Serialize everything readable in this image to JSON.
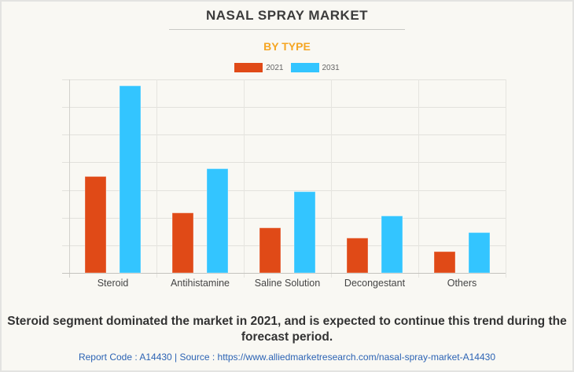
{
  "header": {
    "title": "NASAL SPRAY MARKET",
    "subtitle": "BY TYPE"
  },
  "colors": {
    "series_2021": "#e04a17",
    "series_2031": "#33c5ff",
    "subtitle": "#f5a623",
    "source_link": "#2c63b4"
  },
  "chart_data": {
    "type": "bar",
    "title": "NASAL SPRAY MARKET",
    "subtitle": "BY TYPE",
    "categories": [
      "Steroid",
      "Antihistamine",
      "Saline Solution",
      "Decongestant",
      "Others"
    ],
    "series": [
      {
        "name": "2021",
        "values": [
          3.49,
          2.17,
          1.63,
          1.26,
          0.77
        ]
      },
      {
        "name": "2031",
        "values": [
          6.77,
          3.77,
          2.94,
          2.06,
          1.46
        ]
      }
    ],
    "xlabel": "",
    "ylabel": "",
    "ylim": [
      0,
      7
    ],
    "y_units": "relative (unlabeled axis; gridline units)",
    "grid": true,
    "legend": "top-center"
  },
  "footer": {
    "insight": "Steroid segment dominated the market in 2021, and is expected to continue this trend during the forecast period.",
    "source": "Report Code : A14430  |  Source : https://www.alliedmarketresearch.com/nasal-spray-market-A14430"
  }
}
